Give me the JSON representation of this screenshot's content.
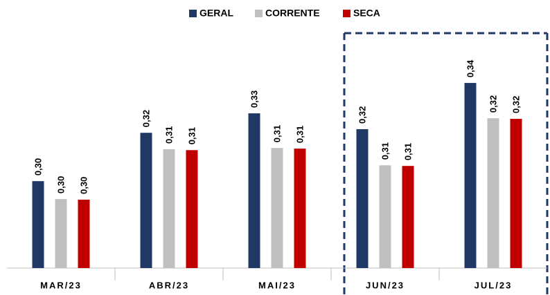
{
  "chart_data": {
    "type": "bar",
    "categories": [
      "MAR/23",
      "ABR/23",
      "MAI/23",
      "JUN/23",
      "JUL/23"
    ],
    "series": [
      {
        "name": "GERAL",
        "color": "#1f3864",
        "values": [
          0.3029,
          0.3188,
          0.3252,
          0.32,
          0.3352
        ],
        "value_labels": [
          "0,30",
          "0,32",
          "0,33",
          "0,32",
          "0,34"
        ]
      },
      {
        "name": "CORRENTE",
        "color": "#bfbfbf",
        "values": [
          0.297,
          0.3134,
          0.3138,
          0.3081,
          0.3236
        ],
        "value_labels": [
          "0,30",
          "0,31",
          "0,31",
          "0,31",
          "0,32"
        ]
      },
      {
        "name": "SECA",
        "color": "#c00000",
        "values": [
          0.2968,
          0.3131,
          0.3136,
          0.3079,
          0.3234
        ],
        "value_labels": [
          "0,30",
          "0,31",
          "0,31",
          "0,31",
          "0,32"
        ]
      }
    ],
    "ylim": [
      0.2743,
      0.3534
    ]
  }
}
